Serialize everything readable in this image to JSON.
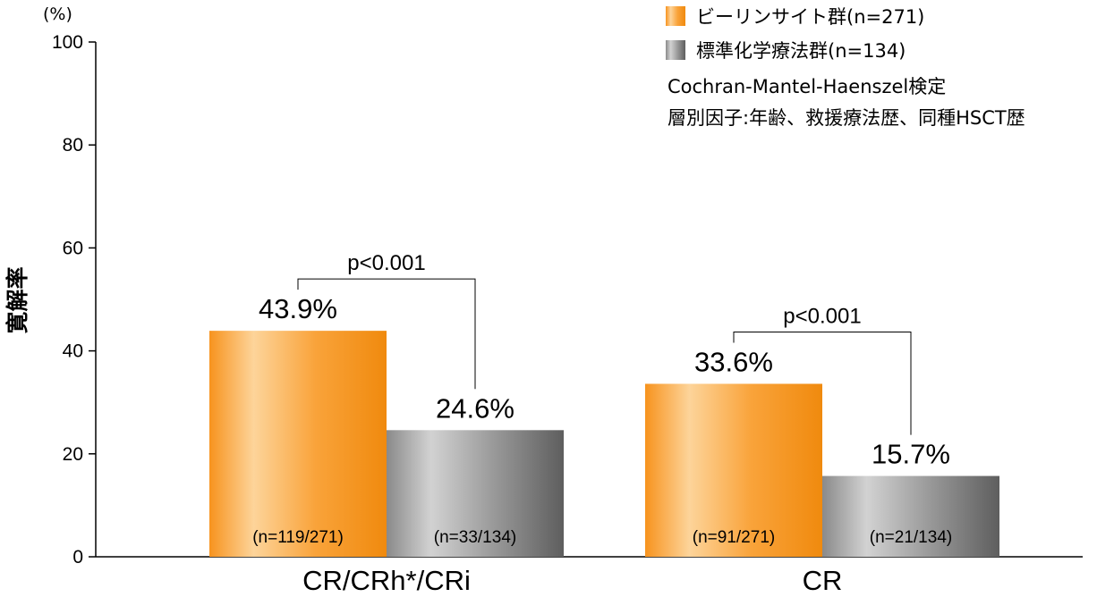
{
  "chart_data": {
    "type": "bar",
    "unit_label": "(%)",
    "ylabel": "寛解率",
    "ylim": [
      0,
      100
    ],
    "yticks": [
      "0",
      "20",
      "40",
      "60",
      "80",
      "100"
    ],
    "categories": [
      "CR/CRh*/CRi",
      "CR"
    ],
    "series": [
      {
        "name": "ビーリンサイト群(n=271)",
        "color": "#f7931e",
        "values": [
          43.9,
          33.6
        ],
        "value_labels": [
          "43.9%",
          "33.6%"
        ],
        "n_labels": [
          "(n=119/271)",
          "(n=91/271)"
        ]
      },
      {
        "name": "標準化学療法群(n=134)",
        "color": "#8c8c8c",
        "values": [
          24.6,
          15.7
        ],
        "value_labels": [
          "24.6%",
          "15.7%"
        ],
        "n_labels": [
          "(n=33/134)",
          "(n=21/134)"
        ]
      }
    ],
    "p_values": [
      "p<0.001",
      "p<0.001"
    ],
    "notes": [
      "Cochran-Mantel-Haenszel検定",
      "層別因子:年齢、救援療法歴、同種HSCT歴"
    ],
    "legend_position": "top-right",
    "grid": false
  }
}
